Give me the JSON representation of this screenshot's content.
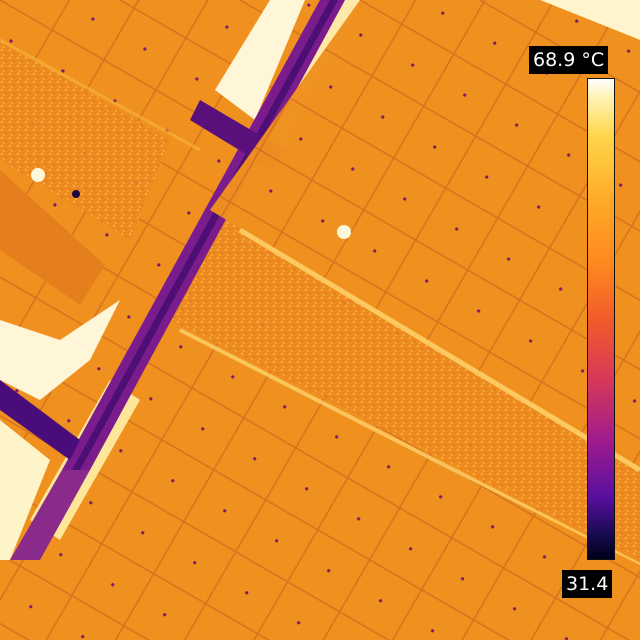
{
  "image": {
    "description_kind": "thermal",
    "palette": "ironbow",
    "colors": {
      "panel": "#f0901f",
      "panel_warm": "#f6a526",
      "cell_line": "#c9601e",
      "hot": "#fff6d0",
      "beam": "#7a1c8c",
      "beam_dark": "#3a0a6a",
      "gap": "#d9741c"
    }
  },
  "scale": {
    "max_label": "68.9 °C",
    "min_label": "31.4"
  }
}
